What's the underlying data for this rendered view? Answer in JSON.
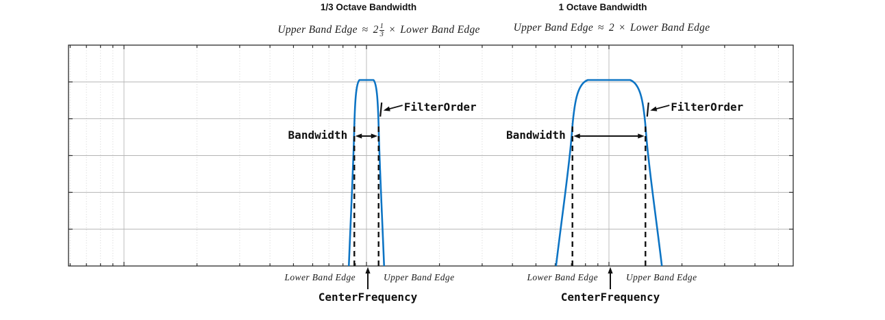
{
  "figure": {
    "background": "#ffffff",
    "curve_color": "#0d74c4",
    "annotation_color": "#111111"
  },
  "panels": [
    {
      "id": "third-octave",
      "title": "1/3 Octave Bandwidth",
      "formula": {
        "lhs": "Upper Band Edge",
        "approx": "≈",
        "coefficient": "2",
        "exponent_numerator": "1",
        "exponent_denominator": "3",
        "times": "×",
        "rhs": "Lower Band Edge"
      },
      "labels": {
        "bandwidth": "Bandwidth",
        "filter_order": "FilterOrder",
        "lower_band_edge": "Lower Band Edge",
        "upper_band_edge": "Upper Band Edge",
        "center_frequency": "CenterFrequency"
      }
    },
    {
      "id": "one-octave",
      "title": "1 Octave Bandwidth",
      "formula": {
        "lhs": "Upper Band Edge",
        "approx": "≈",
        "coefficient": "2",
        "times": "×",
        "rhs": "Lower Band Edge"
      },
      "labels": {
        "bandwidth": "Bandwidth",
        "filter_order": "FilterOrder",
        "lower_band_edge": "Lower Band Edge",
        "upper_band_edge": "Upper Band Edge",
        "center_frequency": "CenterFrequency"
      }
    }
  ],
  "chart_data": {
    "type": "line",
    "title": "",
    "xlabel": "",
    "ylabel": "",
    "x_scale": "log",
    "x_range_decades": [
      0.77,
      3.76
    ],
    "x_major_gridlines": [
      10,
      100,
      1000
    ],
    "x_minor_gridlines": "2:9 per decade, dotted",
    "y_gridline_rows": 6,
    "grid": true,
    "axis_tick_labels_visible": false,
    "legend": "none",
    "series": [
      {
        "name": "1/3 octave bandpass response",
        "color": "#0d74c4",
        "center_frequency": 100,
        "lower_band_edge": 89.1,
        "upper_band_edge": 112.2,
        "upper_to_lower_ratio": "2^(1/3)",
        "shape": "flat passband top at first gridline row, steep skirts to x-axis"
      },
      {
        "name": "1 octave bandpass response",
        "color": "#0d74c4",
        "center_frequency": 1000,
        "lower_band_edge": 707.1,
        "upper_band_edge": 1414.2,
        "upper_to_lower_ratio": "2",
        "shape": "flat passband top at first gridline row, steep skirts to x-axis"
      }
    ],
    "annotations": [
      "Bandwidth double-headed arrow between dashed band edges (both filters)",
      "FilterOrder arrow pointing at filter skirt slope (both filters)",
      "Dashed vertical lines at Lower/Upper Band Edge (both filters)",
      "CenterFrequency upward arrow below x-axis at each filter center"
    ]
  }
}
